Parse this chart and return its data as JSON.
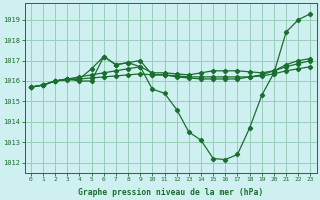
{
  "background_color": "#cff0f0",
  "grid_color": "#99ccbb",
  "line_color": "#1a6e2e",
  "xlabel": "Graphe pression niveau de la mer (hPa)",
  "xlim": [
    -0.5,
    23.5
  ],
  "ylim": [
    1011.5,
    1019.8
  ],
  "yticks": [
    1012,
    1013,
    1014,
    1015,
    1016,
    1017,
    1018,
    1019
  ],
  "xticks": [
    0,
    1,
    2,
    3,
    4,
    5,
    6,
    7,
    8,
    9,
    10,
    11,
    12,
    13,
    14,
    15,
    16,
    17,
    18,
    19,
    20,
    21,
    22,
    23
  ],
  "series": [
    {
      "x": [
        0,
        1,
        2,
        3,
        4,
        5,
        6,
        7,
        8,
        9,
        10,
        11,
        12,
        13,
        14,
        15,
        16,
        17,
        18,
        19,
        20,
        21,
        22,
        23
      ],
      "y": [
        1015.7,
        1015.8,
        1016.0,
        1016.1,
        1016.0,
        1016.0,
        1017.2,
        1016.8,
        1016.9,
        1016.7,
        1015.6,
        1015.4,
        1014.6,
        1013.5,
        1013.1,
        1012.2,
        1012.15,
        1012.4,
        1013.7,
        1015.3,
        1016.4,
        1018.4,
        1019.0,
        1019.3
      ]
    },
    {
      "x": [
        0,
        1,
        2,
        3,
        4,
        5,
        6,
        7,
        8,
        9,
        10,
        11,
        12,
        13,
        14,
        15,
        16,
        17,
        18,
        19,
        20,
        21,
        22,
        23
      ],
      "y": [
        1015.7,
        1015.8,
        1016.0,
        1016.1,
        1016.1,
        1016.15,
        1016.2,
        1016.25,
        1016.3,
        1016.35,
        1016.3,
        1016.3,
        1016.25,
        1016.2,
        1016.2,
        1016.2,
        1016.2,
        1016.2,
        1016.2,
        1016.25,
        1016.35,
        1016.5,
        1016.6,
        1016.7
      ]
    },
    {
      "x": [
        0,
        1,
        2,
        3,
        4,
        5,
        6,
        7,
        8,
        9,
        10,
        11,
        12,
        13,
        14,
        15,
        16,
        17,
        18,
        19,
        20,
        21,
        22,
        23
      ],
      "y": [
        1015.7,
        1015.8,
        1016.0,
        1016.05,
        1016.1,
        1016.6,
        1017.2,
        1016.8,
        1016.9,
        1017.0,
        1016.3,
        1016.3,
        1016.2,
        1016.15,
        1016.1,
        1016.1,
        1016.1,
        1016.1,
        1016.2,
        1016.3,
        1016.5,
        1016.8,
        1017.0,
        1017.1
      ]
    },
    {
      "x": [
        0,
        1,
        2,
        3,
        4,
        5,
        6,
        7,
        8,
        9,
        10,
        11,
        12,
        13,
        14,
        15,
        16,
        17,
        18,
        19,
        20,
        21,
        22,
        23
      ],
      "y": [
        1015.7,
        1015.8,
        1016.0,
        1016.1,
        1016.2,
        1016.3,
        1016.4,
        1016.5,
        1016.6,
        1016.7,
        1016.4,
        1016.4,
        1016.35,
        1016.3,
        1016.4,
        1016.5,
        1016.5,
        1016.5,
        1016.45,
        1016.4,
        1016.5,
        1016.7,
        1016.85,
        1017.0
      ]
    }
  ]
}
